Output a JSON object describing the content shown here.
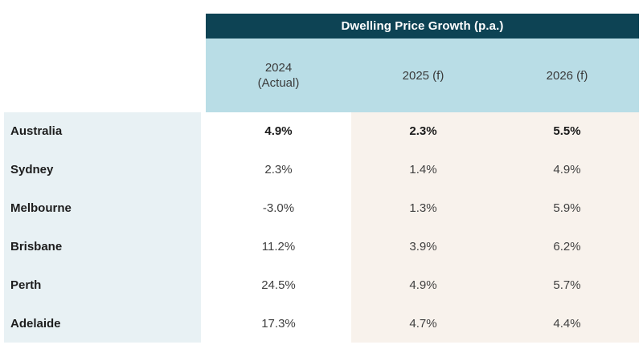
{
  "chart_data": {
    "type": "table",
    "title": "Dwelling Price Growth (p.a.)",
    "columns": [
      {
        "label": "2024",
        "sublabel": "(Actual)"
      },
      {
        "label": "2025 (f)",
        "sublabel": ""
      },
      {
        "label": "2026 (f)",
        "sublabel": ""
      }
    ],
    "rows": [
      {
        "label": "Australia",
        "values": [
          "4.9%",
          "2.3%",
          "5.5%"
        ],
        "emphasis": true
      },
      {
        "label": "Sydney",
        "values": [
          "2.3%",
          "1.4%",
          "4.9%"
        ],
        "emphasis": false
      },
      {
        "label": "Melbourne",
        "values": [
          "-3.0%",
          "1.3%",
          "5.9%"
        ],
        "emphasis": false
      },
      {
        "label": "Brisbane",
        "values": [
          "11.2%",
          "3.9%",
          "6.2%"
        ],
        "emphasis": false
      },
      {
        "label": "Perth",
        "values": [
          "24.5%",
          "4.9%",
          "5.7%"
        ],
        "emphasis": false
      },
      {
        "label": "Adelaide",
        "values": [
          "17.3%",
          "4.7%",
          "4.4%"
        ],
        "emphasis": false
      }
    ]
  },
  "colors": {
    "header_dark": "#0d4354",
    "header_light": "#b9dde6",
    "label_panel": "#e8f1f4",
    "actual_col": "#ffffff",
    "forecast_col": "#f8f2ec"
  }
}
